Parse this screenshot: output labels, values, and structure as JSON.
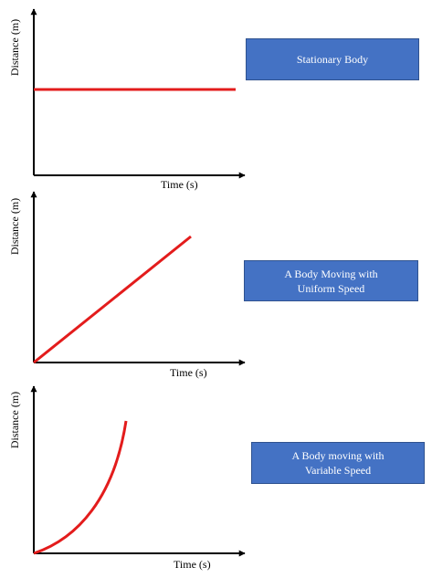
{
  "panels": [
    {
      "label": "Stationary Body",
      "ylabel": "Distance  (m)",
      "xlabel": "Time (s)",
      "curve": "constant",
      "line_color": "#e31c1c"
    },
    {
      "label": "A Body Moving with Uniform Speed",
      "label_lines": [
        "A Body Moving with",
        "Uniform Speed"
      ],
      "ylabel": "Distance  (m)",
      "xlabel": "Time (s)",
      "curve": "linear",
      "line_color": "#e31c1c"
    },
    {
      "label": "A Body moving with Variable Speed",
      "label_lines": [
        "A Body moving with",
        "Variable Speed"
      ],
      "ylabel": "Distance  (m)",
      "xlabel": "Time (s)",
      "curve": "accelerating",
      "line_color": "#e31c1c"
    }
  ],
  "colors": {
    "box_fill": "#4472c4",
    "box_text": "#ffffff",
    "axis": "#000000"
  }
}
